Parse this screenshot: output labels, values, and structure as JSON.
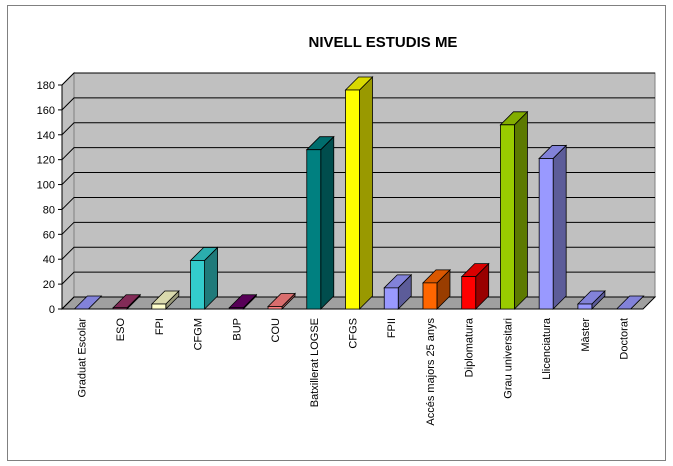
{
  "chart_data": {
    "type": "bar3d",
    "title": "NIVELL ESTUDIS ME",
    "categories": [
      "Graduat Escolar",
      "ESO",
      "FPI",
      "CFGM",
      "BUP",
      "COU",
      "Batxillerat LOGSE",
      "CFGS",
      "FPII",
      "Accés majors 25 anys",
      "Diplomatura",
      "Grau universitari",
      "Llicenciatura",
      "Màster",
      "Doctorat"
    ],
    "values": [
      0,
      1,
      4,
      39,
      1,
      2,
      128,
      176,
      17,
      21,
      26,
      148,
      121,
      4,
      0
    ],
    "colors": [
      "#9999ff",
      "#993366",
      "#ffffcc",
      "#33cccc",
      "#660066",
      "#ff8080",
      "#008080",
      "#ffff00",
      "#9999ff",
      "#ff6600",
      "#ff0000",
      "#99cc00",
      "#9999ff",
      "#9999ff",
      "#9999ff"
    ],
    "ylim": [
      0,
      180
    ],
    "yticks": [
      0,
      20,
      40,
      60,
      80,
      100,
      120,
      140,
      160,
      180
    ],
    "grid": true
  }
}
